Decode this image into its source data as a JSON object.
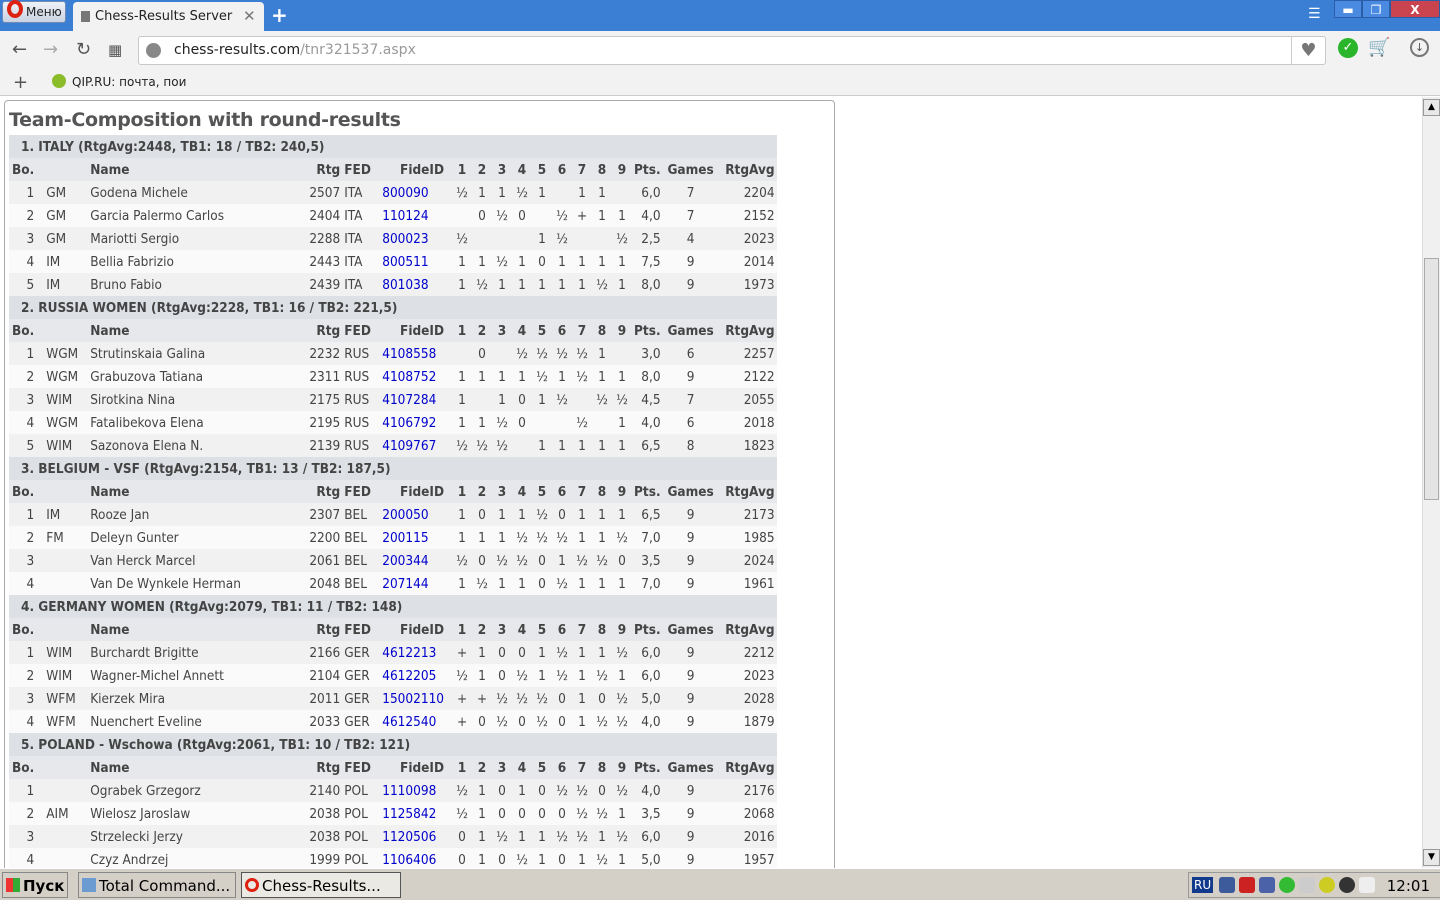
{
  "browser": {
    "menu_label": "Меню",
    "tab_title": "Chess-Results Server Ch",
    "url_host": "chess-results.com",
    "url_path": "/tnr321537.aspx",
    "bookmark": "QIP.RU: почта, пои"
  },
  "page": {
    "heading": "Team-Composition with round-results",
    "columns": [
      "Bo.",
      "",
      "Name",
      "Rtg",
      "FED",
      "FideID",
      "1",
      "2",
      "3",
      "4",
      "5",
      "6",
      "7",
      "8",
      "9",
      "Pts.",
      "Games",
      "RtgAvg"
    ],
    "teams": [
      {
        "title": "1. ITALY (RtgAvg:2448, TB1: 18 / TB2: 240,5)",
        "players": [
          [
            "1",
            "GM",
            "Godena Michele",
            "2507",
            "ITA",
            "800090",
            "½",
            "1",
            "1",
            "½",
            "1",
            "",
            "1",
            "1",
            "",
            "6,0",
            "7",
            "2204"
          ],
          [
            "2",
            "GM",
            "Garcia Palermo Carlos",
            "2404",
            "ITA",
            "110124",
            "",
            "0",
            "½",
            "0",
            "",
            "½",
            "+",
            "1",
            "1",
            "4,0",
            "7",
            "2152"
          ],
          [
            "3",
            "GM",
            "Mariotti Sergio",
            "2288",
            "ITA",
            "800023",
            "½",
            "",
            "",
            "",
            "1",
            "½",
            "",
            "",
            "½",
            "2,5",
            "4",
            "2023"
          ],
          [
            "4",
            "IM",
            "Bellia Fabrizio",
            "2443",
            "ITA",
            "800511",
            "1",
            "1",
            "½",
            "1",
            "0",
            "1",
            "1",
            "1",
            "1",
            "7,5",
            "9",
            "2014"
          ],
          [
            "5",
            "IM",
            "Bruno Fabio",
            "2439",
            "ITA",
            "801038",
            "1",
            "½",
            "1",
            "1",
            "1",
            "1",
            "1",
            "½",
            "1",
            "8,0",
            "9",
            "1973"
          ]
        ]
      },
      {
        "title": "2. RUSSIA WOMEN (RtgAvg:2228, TB1: 16 / TB2: 221,5)",
        "players": [
          [
            "1",
            "WGM",
            "Strutinskaia Galina",
            "2232",
            "RUS",
            "4108558",
            "",
            "0",
            "",
            "½",
            "½",
            "½",
            "½",
            "1",
            "",
            "3,0",
            "6",
            "2257"
          ],
          [
            "2",
            "WGM",
            "Grabuzova Tatiana",
            "2311",
            "RUS",
            "4108752",
            "1",
            "1",
            "1",
            "1",
            "½",
            "1",
            "½",
            "1",
            "1",
            "8,0",
            "9",
            "2122"
          ],
          [
            "3",
            "WIM",
            "Sirotkina Nina",
            "2175",
            "RUS",
            "4107284",
            "1",
            "",
            "1",
            "0",
            "1",
            "½",
            "",
            "½",
            "½",
            "4,5",
            "7",
            "2055"
          ],
          [
            "4",
            "WGM",
            "Fatalibekova Elena",
            "2195",
            "RUS",
            "4106792",
            "1",
            "1",
            "½",
            "0",
            "",
            "",
            "½",
            "",
            "1",
            "4,0",
            "6",
            "2018"
          ],
          [
            "5",
            "WIM",
            "Sazonova Elena N.",
            "2139",
            "RUS",
            "4109767",
            "½",
            "½",
            "½",
            "",
            "1",
            "1",
            "1",
            "1",
            "1",
            "6,5",
            "8",
            "1823"
          ]
        ]
      },
      {
        "title": "3. BELGIUM - VSF (RtgAvg:2154, TB1: 13 / TB2: 187,5)",
        "players": [
          [
            "1",
            "IM",
            "Rooze Jan",
            "2307",
            "BEL",
            "200050",
            "1",
            "0",
            "1",
            "1",
            "½",
            "0",
            "1",
            "1",
            "1",
            "6,5",
            "9",
            "2173"
          ],
          [
            "2",
            "FM",
            "Deleyn Gunter",
            "2200",
            "BEL",
            "200115",
            "1",
            "1",
            "1",
            "½",
            "½",
            "½",
            "1",
            "1",
            "½",
            "7,0",
            "9",
            "1985"
          ],
          [
            "3",
            "",
            "Van Herck Marcel",
            "2061",
            "BEL",
            "200344",
            "½",
            "0",
            "½",
            "½",
            "0",
            "1",
            "½",
            "½",
            "0",
            "3,5",
            "9",
            "2024"
          ],
          [
            "4",
            "",
            "Van De Wynkele Herman",
            "2048",
            "BEL",
            "207144",
            "1",
            "½",
            "1",
            "1",
            "0",
            "½",
            "1",
            "1",
            "1",
            "7,0",
            "9",
            "1961"
          ]
        ]
      },
      {
        "title": "4. GERMANY WOMEN (RtgAvg:2079, TB1: 11 / TB2: 148)",
        "players": [
          [
            "1",
            "WIM",
            "Burchardt Brigitte",
            "2166",
            "GER",
            "4612213",
            "+",
            "1",
            "0",
            "0",
            "1",
            "½",
            "1",
            "1",
            "½",
            "6,0",
            "9",
            "2212"
          ],
          [
            "2",
            "WIM",
            "Wagner-Michel Annett",
            "2104",
            "GER",
            "4612205",
            "½",
            "1",
            "0",
            "½",
            "1",
            "½",
            "1",
            "½",
            "1",
            "6,0",
            "9",
            "2023"
          ],
          [
            "3",
            "WFM",
            "Kierzek Mira",
            "2011",
            "GER",
            "15002110",
            "+",
            "+",
            "½",
            "½",
            "½",
            "0",
            "1",
            "0",
            "½",
            "5,0",
            "9",
            "2028"
          ],
          [
            "4",
            "WFM",
            "Nuenchert Eveline",
            "2033",
            "GER",
            "4612540",
            "+",
            "0",
            "½",
            "0",
            "½",
            "0",
            "1",
            "½",
            "½",
            "4,0",
            "9",
            "1879"
          ]
        ]
      },
      {
        "title": "5. POLAND - Wschowa (RtgAvg:2061, TB1: 10 / TB2: 121)",
        "players": [
          [
            "1",
            "",
            "Ograbek Grzegorz",
            "2140",
            "POL",
            "1110098",
            "½",
            "1",
            "0",
            "1",
            "0",
            "½",
            "½",
            "0",
            "½",
            "4,0",
            "9",
            "2176"
          ],
          [
            "2",
            "AIM",
            "Wielosz Jaroslaw",
            "2038",
            "POL",
            "1125842",
            "½",
            "1",
            "0",
            "0",
            "0",
            "0",
            "½",
            "½",
            "1",
            "3,5",
            "9",
            "2068"
          ],
          [
            "3",
            "",
            "Strzelecki Jerzy",
            "2038",
            "POL",
            "1120506",
            "0",
            "1",
            "½",
            "1",
            "1",
            "½",
            "½",
            "1",
            "½",
            "6,0",
            "9",
            "2016"
          ],
          [
            "4",
            "",
            "Czyz Andrzej",
            "1999",
            "POL",
            "1106406",
            "0",
            "1",
            "0",
            "½",
            "1",
            "0",
            "1",
            "½",
            "1",
            "5,0",
            "9",
            "1957"
          ]
        ]
      }
    ]
  },
  "taskbar": {
    "start": "Пуск",
    "items": [
      "Total Command...",
      "Chess-Results..."
    ],
    "lang": "RU",
    "clock": "12:01"
  },
  "colors": {
    "link": "#0000cc",
    "titlebar": "#3b7fd4",
    "close": "#c9444f"
  }
}
